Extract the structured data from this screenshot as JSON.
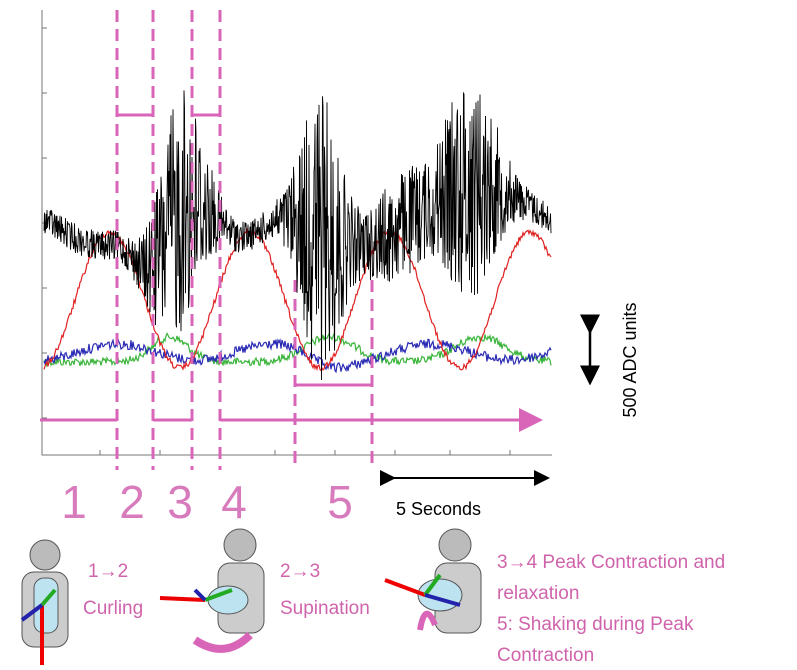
{
  "phases": [
    "1",
    "2",
    "3",
    "4",
    "5"
  ],
  "scale": {
    "amplitude": "500 ADC units",
    "time": "5 Seconds"
  },
  "captions": [
    {
      "step": "1→2",
      "label": "Curling"
    },
    {
      "step": "2→3",
      "label": "Supination"
    },
    {
      "lines": [
        "3→4 Peak Contraction  and",
        "relaxation",
        "5: Shaking during Peak",
        "Contraction"
      ]
    }
  ]
}
